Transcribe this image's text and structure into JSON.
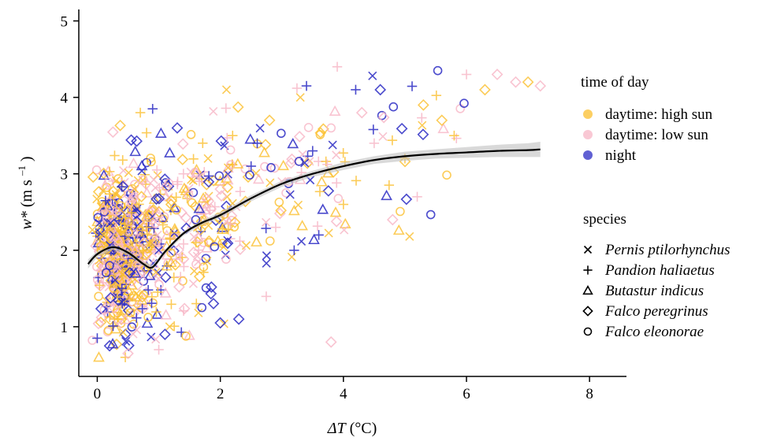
{
  "chart_data": {
    "type": "scatter",
    "xlabel": {
      "symbol": "ΔT",
      "unit": "(°C)"
    },
    "ylabel": {
      "symbol": "w*",
      "unit": "(m s",
      "exp": "–1",
      "close": ")"
    },
    "xlim": [
      -0.3,
      8.6
    ],
    "ylim": [
      0.35,
      5.15
    ],
    "xticks": [
      0,
      2,
      4,
      6,
      8
    ],
    "yticks": [
      1,
      2,
      3,
      4,
      5
    ],
    "grid": false,
    "legend_position": "right",
    "legend_time_title": "time of day",
    "legend_time": [
      {
        "label": "daytime: high sun",
        "color": "#FBBF2E"
      },
      {
        "label": "daytime: low sun",
        "color": "#F7B5C5"
      },
      {
        "label": "night",
        "color": "#2B2BC4"
      }
    ],
    "legend_species_title": "species",
    "legend_species": [
      {
        "label": "Pernis ptilorhynchus",
        "marker": "x"
      },
      {
        "label": "Pandion haliaetus",
        "marker": "plus"
      },
      {
        "label": "Butastur indicus",
        "marker": "triangle"
      },
      {
        "label": "Falco peregrinus",
        "marker": "diamond"
      },
      {
        "label": "Falco eleonorae",
        "marker": "circle"
      }
    ],
    "trend_line": {
      "x": [
        -0.15,
        0.0,
        0.25,
        0.5,
        0.75,
        0.9,
        1.1,
        1.4,
        1.7,
        2.0,
        2.5,
        3.0,
        3.5,
        4.0,
        4.5,
        5.0,
        5.5,
        6.0,
        6.5,
        7.0,
        7.2
      ],
      "y": [
        1.82,
        1.95,
        2.04,
        1.97,
        1.82,
        1.78,
        1.98,
        2.22,
        2.36,
        2.46,
        2.68,
        2.87,
        3.0,
        3.1,
        3.18,
        3.23,
        3.26,
        3.28,
        3.3,
        3.31,
        3.32
      ],
      "ci_halfwidth": [
        0.06,
        0.04,
        0.03,
        0.03,
        0.03,
        0.03,
        0.03,
        0.03,
        0.03,
        0.04,
        0.04,
        0.04,
        0.04,
        0.05,
        0.05,
        0.06,
        0.06,
        0.07,
        0.08,
        0.09,
        0.1
      ]
    },
    "points": [
      [
        0.1,
        2.2,
        0,
        "x"
      ],
      [
        0.3,
        2.5,
        1,
        "plus"
      ],
      [
        0.2,
        1.8,
        2,
        "circle"
      ],
      [
        0.5,
        2.1,
        0,
        "diamond"
      ],
      [
        0.4,
        1.5,
        2,
        "plus"
      ],
      [
        0.6,
        2.7,
        1,
        "circle"
      ],
      [
        0.8,
        2.3,
        0,
        "plus"
      ],
      [
        1.0,
        2.0,
        2,
        "x"
      ],
      [
        1.2,
        2.6,
        0,
        "diamond"
      ],
      [
        1.4,
        3.0,
        1,
        "plus"
      ],
      [
        1.6,
        2.4,
        2,
        "circle"
      ],
      [
        1.8,
        3.2,
        0,
        "x"
      ],
      [
        2.0,
        2.8,
        1,
        "diamond"
      ],
      [
        2.2,
        3.5,
        0,
        "plus"
      ],
      [
        2.5,
        3.1,
        2,
        "plus"
      ],
      [
        2.8,
        3.7,
        0,
        "diamond"
      ],
      [
        3.0,
        2.9,
        1,
        "x"
      ],
      [
        3.3,
        4.0,
        0,
        "x"
      ],
      [
        3.5,
        3.3,
        2,
        "plus"
      ],
      [
        3.8,
        3.6,
        1,
        "circle"
      ],
      [
        4.0,
        2.6,
        0,
        "plus"
      ],
      [
        4.2,
        4.1,
        2,
        "plus"
      ],
      [
        4.5,
        3.4,
        1,
        "plus"
      ],
      [
        4.8,
        2.4,
        1,
        "diamond"
      ],
      [
        5.0,
        3.2,
        0,
        "plus"
      ],
      [
        5.3,
        3.9,
        0,
        "diamond"
      ],
      [
        5.6,
        3.7,
        0,
        "diamond"
      ],
      [
        5.8,
        3.5,
        0,
        "plus"
      ],
      [
        6.0,
        4.3,
        1,
        "plus"
      ],
      [
        6.3,
        4.1,
        0,
        "diamond"
      ],
      [
        6.5,
        4.3,
        1,
        "diamond"
      ],
      [
        6.8,
        4.2,
        1,
        "diamond"
      ],
      [
        7.0,
        4.2,
        0,
        "diamond"
      ],
      [
        7.2,
        4.15,
        1,
        "diamond"
      ],
      [
        4.6,
        4.1,
        2,
        "diamond"
      ],
      [
        3.4,
        4.15,
        2,
        "plus"
      ],
      [
        0.0,
        0.85,
        2,
        "plus"
      ],
      [
        0.2,
        0.75,
        2,
        "diamond"
      ],
      [
        0.5,
        0.65,
        1,
        "diamond"
      ],
      [
        1.0,
        0.7,
        1,
        "plus"
      ],
      [
        1.1,
        0.9,
        2,
        "diamond"
      ],
      [
        1.7,
        1.25,
        2,
        "circle"
      ],
      [
        2.0,
        1.05,
        2,
        "diamond"
      ],
      [
        2.3,
        1.1,
        2,
        "diamond"
      ],
      [
        3.2,
        2.0,
        2,
        "plus"
      ],
      [
        3.6,
        2.2,
        2,
        "plus"
      ],
      [
        3.8,
        0.8,
        1,
        "diamond"
      ],
      [
        4.3,
        3.8,
        1,
        "diamond"
      ],
      [
        3.9,
        4.4,
        1,
        "plus"
      ],
      [
        2.9,
        2.3,
        1,
        "plus"
      ],
      [
        0.7,
        3.8,
        0,
        "plus"
      ],
      [
        0.9,
        3.85,
        2,
        "plus"
      ],
      [
        1.3,
        3.6,
        2,
        "diamond"
      ],
      [
        2.1,
        4.1,
        0,
        "x"
      ],
      [
        2.6,
        3.4,
        2,
        "plus"
      ],
      [
        5.2,
        2.7,
        1,
        "plus"
      ]
    ]
  }
}
